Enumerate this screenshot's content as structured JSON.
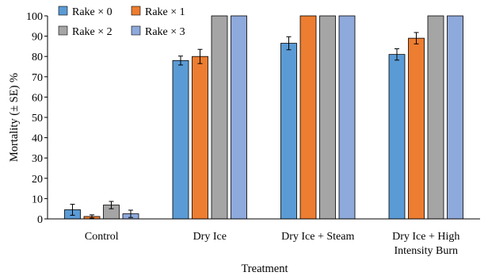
{
  "chart_data": {
    "type": "bar",
    "xlabel": "Treatment",
    "ylabel": "Mortality (± SE) %",
    "ylim": [
      0,
      100
    ],
    "yticks": [
      0,
      10,
      20,
      30,
      40,
      50,
      60,
      70,
      80,
      90,
      100
    ],
    "categories": [
      [
        "Control"
      ],
      [
        "Dry Ice"
      ],
      [
        "Dry Ice + Steam"
      ],
      [
        "Dry Ice + High",
        "Intensity Burn"
      ]
    ],
    "series": [
      {
        "name": "Rake × 0",
        "color": "#5B9BD5",
        "values": [
          4.5,
          78,
          86.5,
          81
        ],
        "errors": [
          2.7,
          2.2,
          3.2,
          2.8
        ]
      },
      {
        "name": "Rake × 1",
        "color": "#ED7D31",
        "values": [
          1.2,
          80,
          100,
          89
        ],
        "errors": [
          0.8,
          3.5,
          0,
          2.8
        ]
      },
      {
        "name": "Rake × 2",
        "color": "#A5A5A5",
        "values": [
          6.8,
          100,
          100,
          100
        ],
        "errors": [
          1.8,
          0,
          0,
          0
        ]
      },
      {
        "name": "Rake × 3",
        "color": "#8EA9DB",
        "values": [
          2.5,
          100,
          100,
          100
        ],
        "errors": [
          1.8,
          0,
          0,
          0
        ]
      }
    ],
    "grid": false,
    "legend": "top-left"
  }
}
